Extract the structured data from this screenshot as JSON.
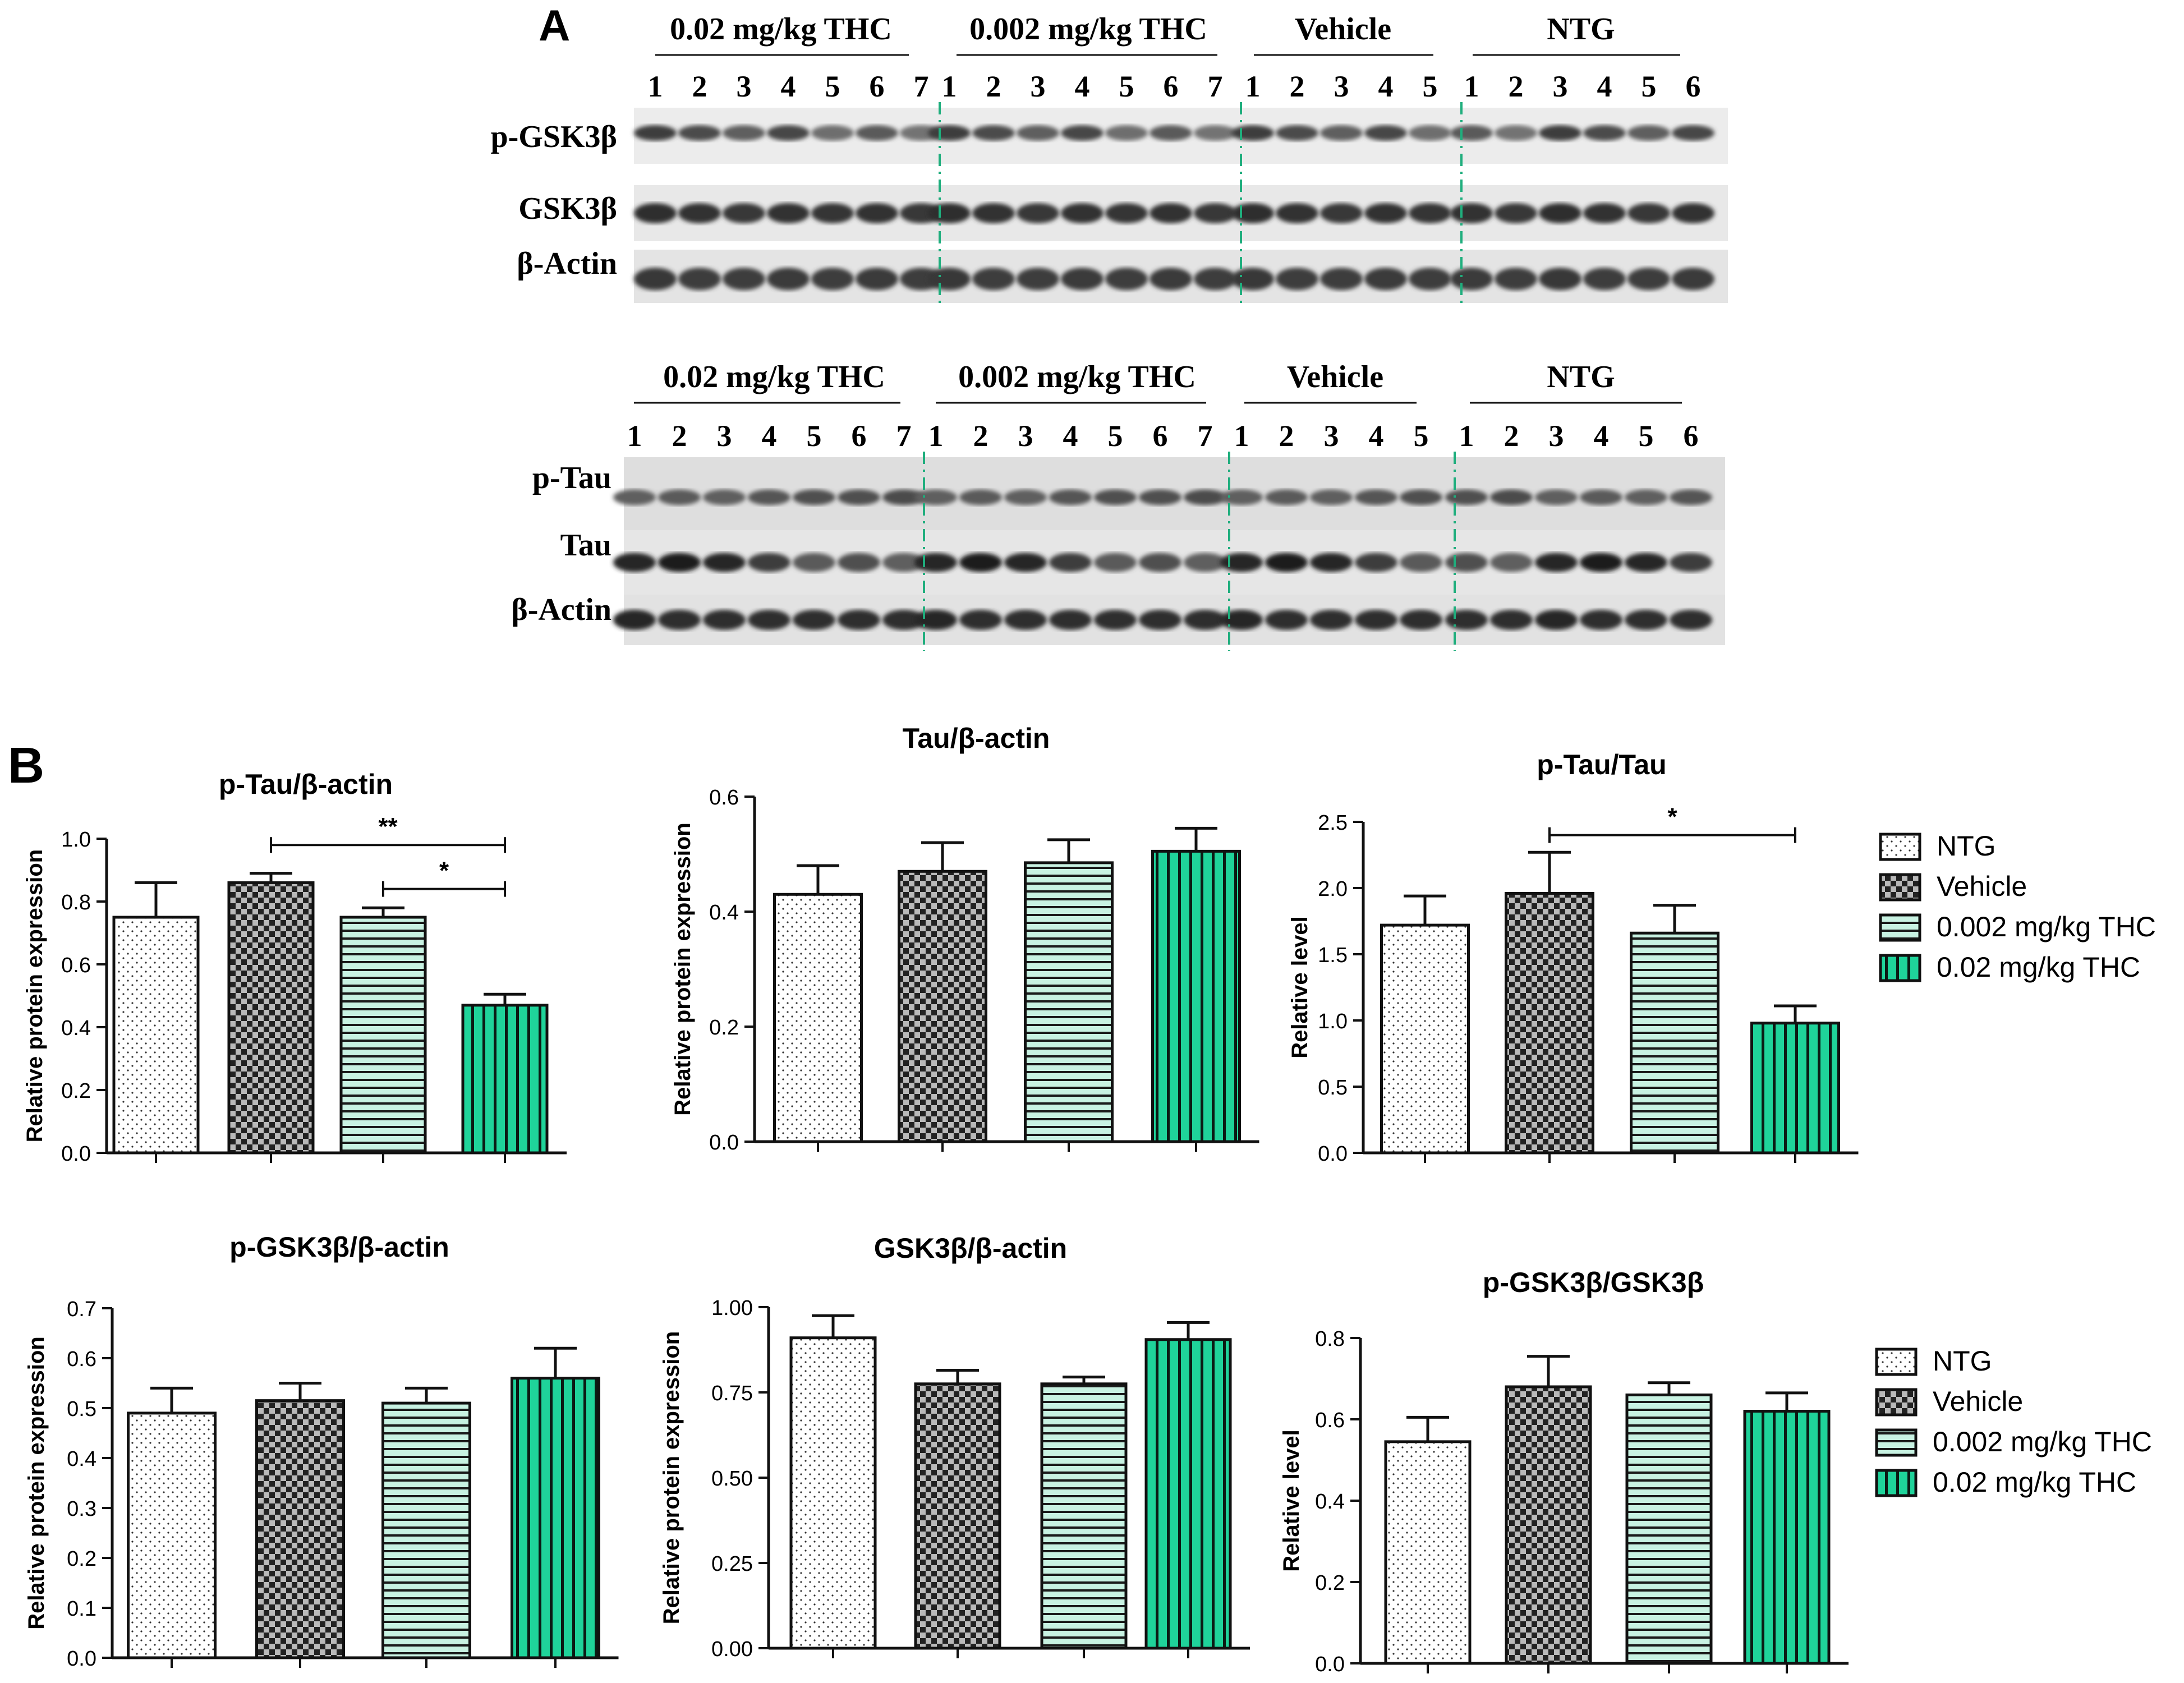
{
  "panel_labels": {
    "a": "A",
    "b": "B"
  },
  "blot_top": {
    "groups": [
      {
        "label": "0.02 mg/kg THC",
        "lanes": [
          "1",
          "2",
          "3",
          "4",
          "5",
          "6",
          "7"
        ]
      },
      {
        "label": "0.002 mg/kg THC",
        "lanes": [
          "1",
          "2",
          "3",
          "4",
          "5",
          "6",
          "7"
        ]
      },
      {
        "label": "Vehicle",
        "lanes": [
          "1",
          "2",
          "3",
          "4",
          "5"
        ]
      },
      {
        "label": "NTG",
        "lanes": [
          "1",
          "2",
          "3",
          "4",
          "5",
          "6"
        ]
      }
    ],
    "rows": [
      "p-GSK3β",
      "GSK3β",
      "β-Actin"
    ]
  },
  "blot_bottom": {
    "groups": [
      {
        "label": "0.02 mg/kg THC",
        "lanes": [
          "1",
          "2",
          "3",
          "4",
          "5",
          "6",
          "7"
        ]
      },
      {
        "label": "0.002 mg/kg THC",
        "lanes": [
          "1",
          "2",
          "3",
          "4",
          "5",
          "6",
          "7"
        ]
      },
      {
        "label": "Vehicle",
        "lanes": [
          "1",
          "2",
          "3",
          "4",
          "5"
        ]
      },
      {
        "label": "NTG",
        "lanes": [
          "1",
          "2",
          "3",
          "4",
          "5",
          "6"
        ]
      }
    ],
    "rows": [
      "p-Tau",
      "Tau",
      "β-Actin"
    ]
  },
  "legend": {
    "entries": [
      "NTG",
      "Vehicle",
      "0.002 mg/kg THC",
      "0.02 mg/kg THC"
    ],
    "colors": [
      "#ffffff",
      "#4a4a4a",
      "#c8f2e2",
      "#1fd39a"
    ],
    "patterns": [
      "dots",
      "checker",
      "hstripes",
      "vstripes"
    ]
  },
  "chart_data": [
    {
      "type": "bar",
      "title": "p-Tau/β-actin",
      "ylabel": "Relative protein expression",
      "categories": [
        "NTG",
        "Vehicle",
        "0.002 mg/kg THC",
        "0.02 mg/kg THC"
      ],
      "values": [
        0.75,
        0.86,
        0.75,
        0.47
      ],
      "errors": [
        0.11,
        0.03,
        0.03,
        0.035
      ],
      "ylim": [
        0,
        1.0
      ],
      "yticks": [
        "0.0",
        "0.2",
        "0.4",
        "0.6",
        "0.8",
        "1.0"
      ],
      "significance": [
        {
          "from": 1,
          "to": 3,
          "label": "**",
          "y": 0.98
        },
        {
          "from": 2,
          "to": 3,
          "label": "*",
          "y": 0.84
        }
      ]
    },
    {
      "type": "bar",
      "title": "Tau/β-actin",
      "ylabel": "Relative protein expression",
      "categories": [
        "NTG",
        "Vehicle",
        "0.002 mg/kg THC",
        "0.02 mg/kg THC"
      ],
      "values": [
        0.43,
        0.47,
        0.485,
        0.505
      ],
      "errors": [
        0.05,
        0.05,
        0.04,
        0.04
      ],
      "ylim": [
        0,
        0.6
      ],
      "yticks": [
        "0.0",
        "0.2",
        "0.4",
        "0.6"
      ],
      "significance": []
    },
    {
      "type": "bar",
      "title": "p-Tau/Tau",
      "ylabel": "Relative level",
      "categories": [
        "NTG",
        "Vehicle",
        "0.002 mg/kg THC",
        "0.02 mg/kg THC"
      ],
      "values": [
        1.72,
        1.96,
        1.66,
        0.98
      ],
      "errors": [
        0.22,
        0.31,
        0.21,
        0.13
      ],
      "ylim": [
        0,
        2.5
      ],
      "yticks": [
        "0.0",
        "0.5",
        "1.0",
        "1.5",
        "2.0",
        "2.5"
      ],
      "significance": [
        {
          "from": 1,
          "to": 3,
          "label": "*",
          "y": 2.4
        }
      ]
    },
    {
      "type": "bar",
      "title": "p-GSK3β/β-actin",
      "ylabel": "Relative protein expression",
      "categories": [
        "NTG",
        "Vehicle",
        "0.002 mg/kg THC",
        "0.02 mg/kg THC"
      ],
      "values": [
        0.49,
        0.515,
        0.51,
        0.56
      ],
      "errors": [
        0.05,
        0.035,
        0.03,
        0.06
      ],
      "ylim": [
        0,
        0.7
      ],
      "yticks": [
        "0.0",
        "0.1",
        "0.2",
        "0.3",
        "0.4",
        "0.5",
        "0.6",
        "0.7"
      ],
      "significance": []
    },
    {
      "type": "bar",
      "title": "GSK3β/β-actin",
      "ylabel": "Relative protein expression",
      "categories": [
        "NTG",
        "Vehicle",
        "0.002 mg/kg THC",
        "0.02 mg/kg THC"
      ],
      "values": [
        0.91,
        0.775,
        0.775,
        0.905
      ],
      "errors": [
        0.065,
        0.04,
        0.02,
        0.05
      ],
      "ylim": [
        0,
        1.0
      ],
      "yticks": [
        "0.00",
        "0.25",
        "0.50",
        "0.75",
        "1.00"
      ],
      "significance": []
    },
    {
      "type": "bar",
      "title": "p-GSK3β/GSK3β",
      "ylabel": "Relative level",
      "categories": [
        "NTG",
        "Vehicle",
        "0.002 mg/kg THC",
        "0.02 mg/kg THC"
      ],
      "values": [
        0.545,
        0.68,
        0.66,
        0.62
      ],
      "errors": [
        0.06,
        0.075,
        0.03,
        0.045
      ],
      "ylim": [
        0,
        0.8
      ],
      "yticks": [
        "0.0",
        "0.2",
        "0.4",
        "0.6",
        "0.8"
      ],
      "significance": []
    }
  ]
}
